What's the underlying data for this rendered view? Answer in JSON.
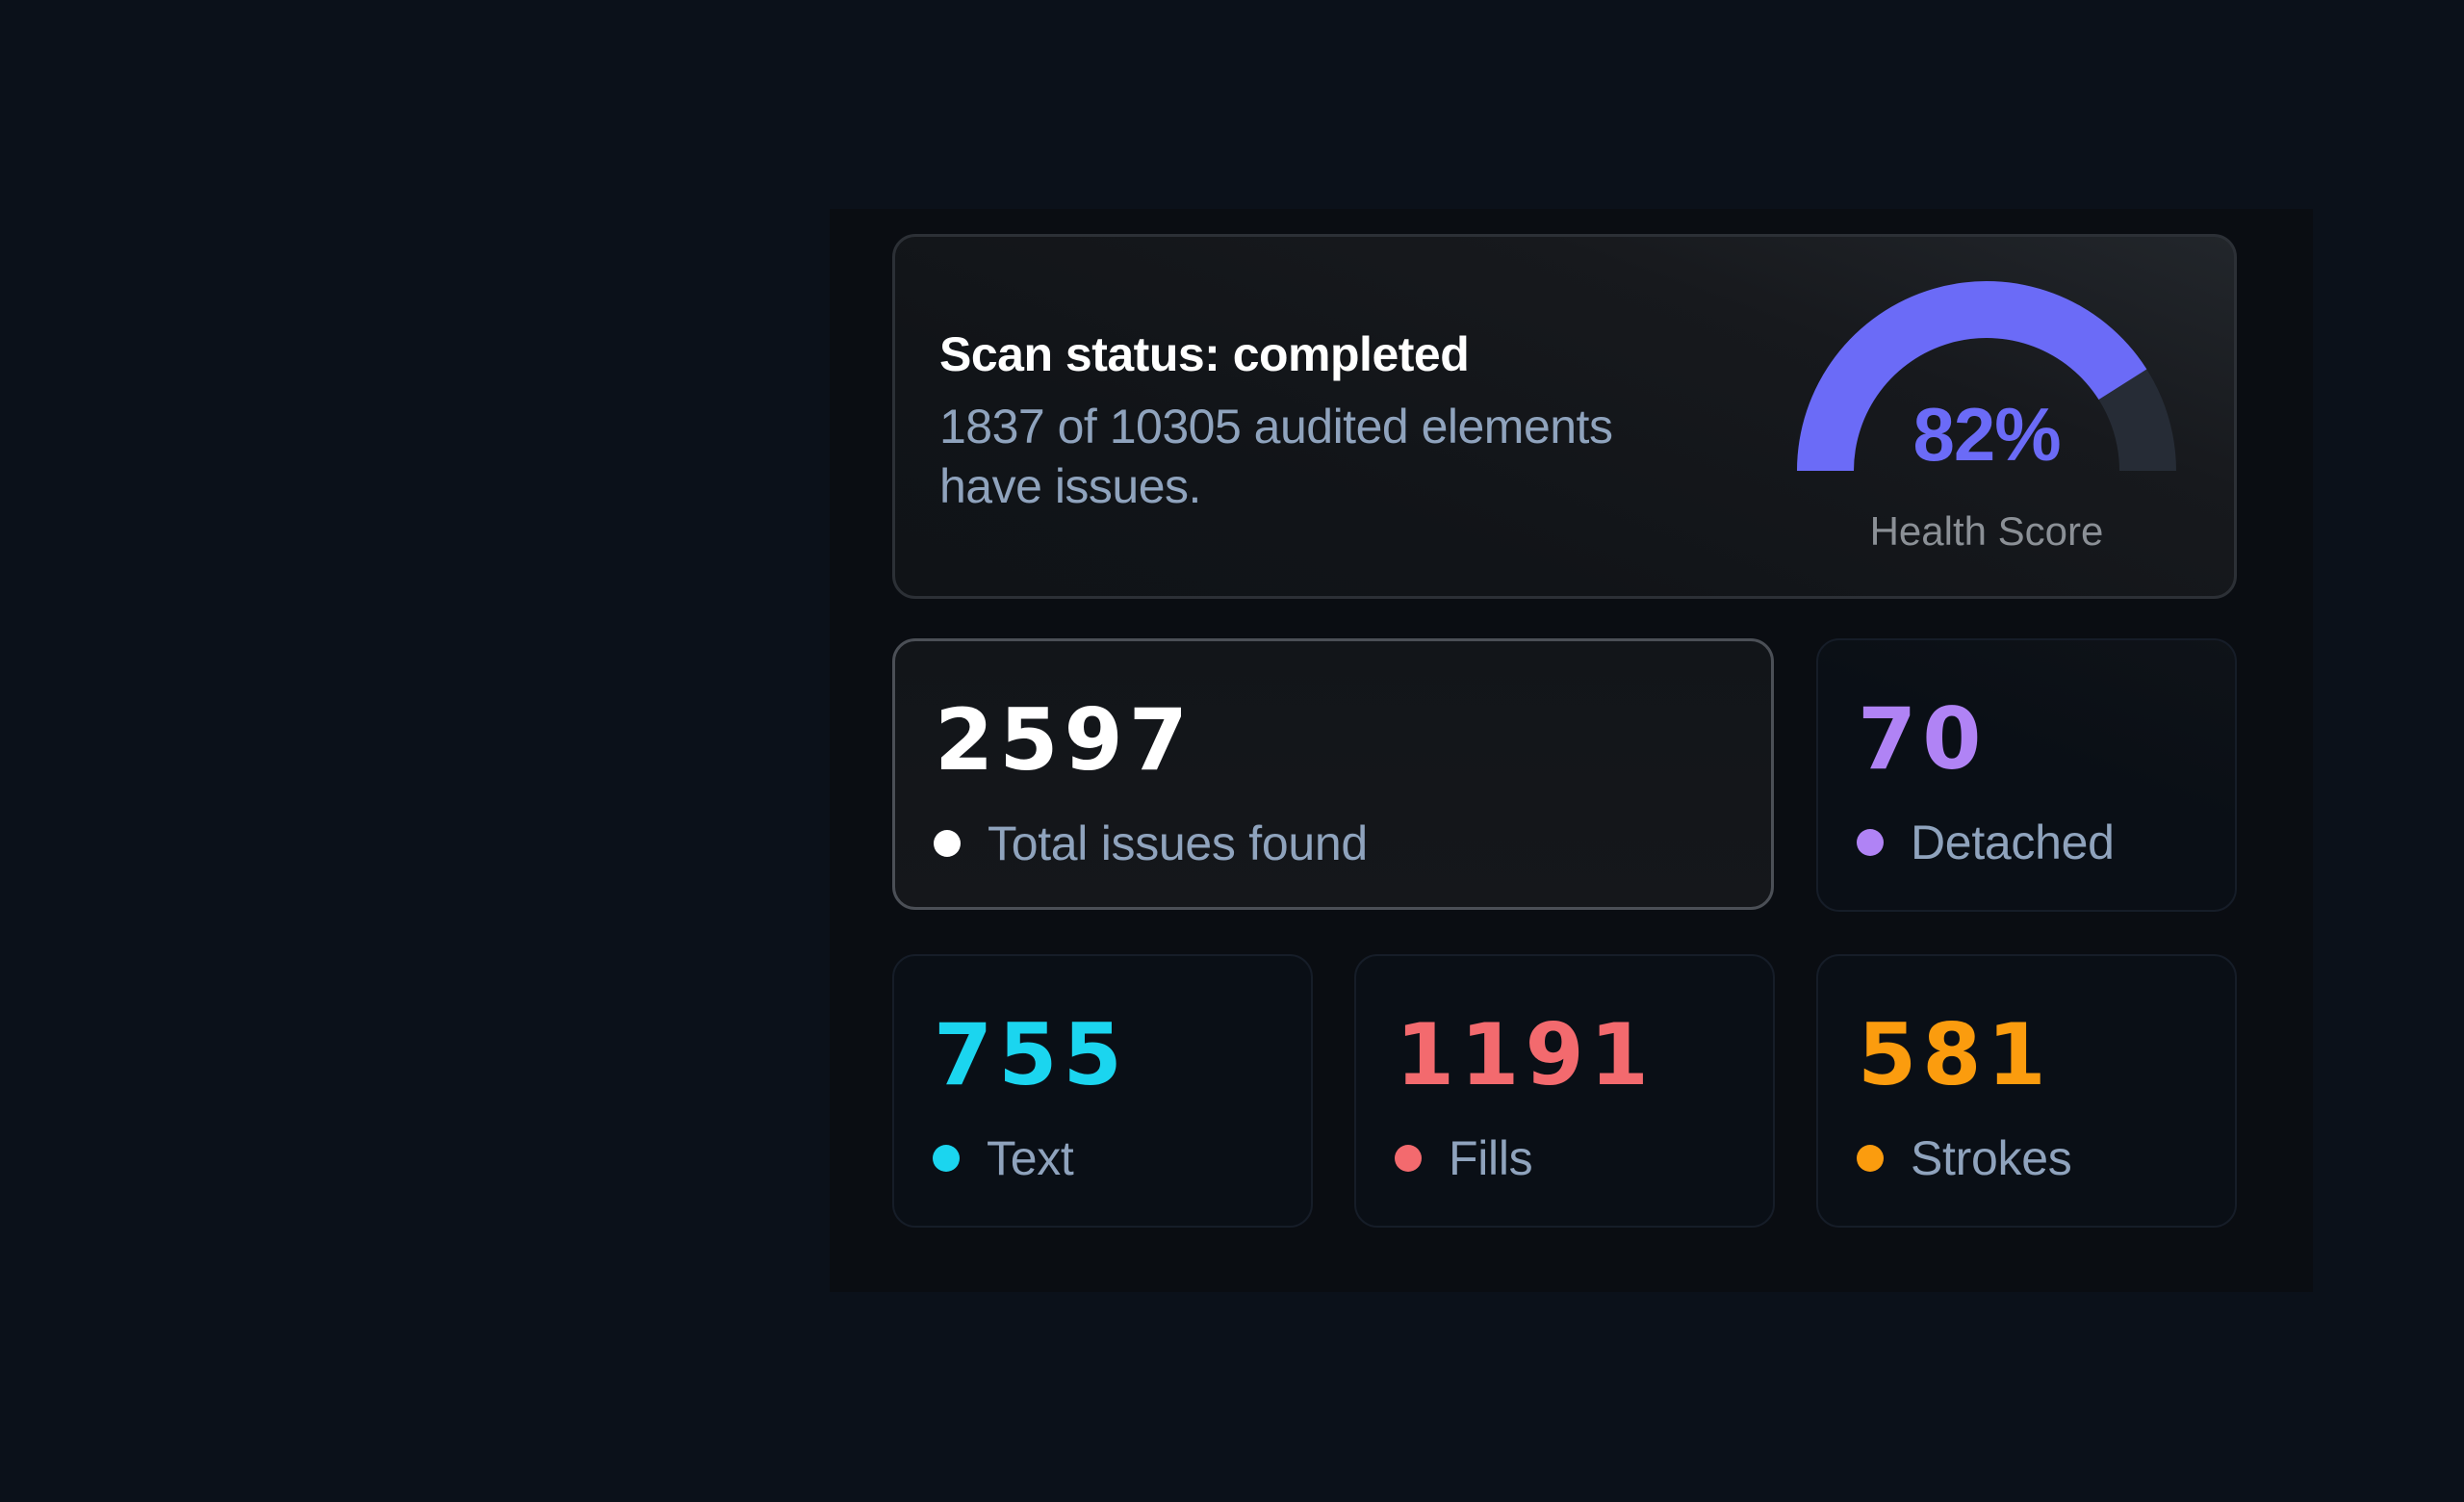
{
  "scan": {
    "title": "Scan status: completed",
    "description": "1837 of 10305 audited elements have issues."
  },
  "health": {
    "value_label": "82%",
    "percent": 82,
    "label": "Health Score",
    "color": "#6b6bf7",
    "track_color": "#262c36"
  },
  "stats": {
    "total": {
      "value": "2597",
      "label": "Total issues found",
      "color": "#ffffff"
    },
    "detached": {
      "value": "70",
      "label": "Detached",
      "color": "#b083f5"
    },
    "text": {
      "value": "755",
      "label": "Text",
      "color": "#1bd5ef"
    },
    "fills": {
      "value": "1191",
      "label": "Fills",
      "color": "#f36a6e"
    },
    "strokes": {
      "value": "581",
      "label": "Strokes",
      "color": "#fb9c0e"
    }
  }
}
